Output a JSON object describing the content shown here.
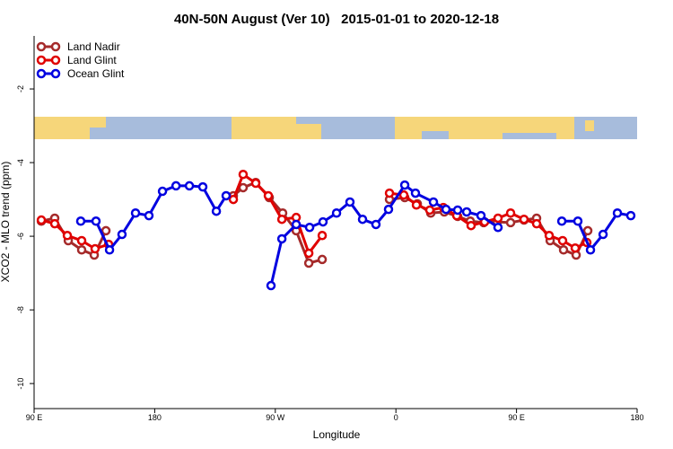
{
  "chart_data": {
    "type": "line",
    "title": "40N-50N August (Ver 10)   2015-01-01 to 2020-12-18",
    "xlabel": "Longitude",
    "ylabel": "XCO2 - MLO trend (ppm)",
    "xlim": [
      90,
      540
    ],
    "ylim": [
      -10.68,
      -0.56
    ],
    "xticks": [
      {
        "value": 90,
        "label": "90 E"
      },
      {
        "value": 180,
        "label": "180"
      },
      {
        "value": 270,
        "label": "90 W"
      },
      {
        "value": 360,
        "label": "0"
      },
      {
        "value": 450,
        "label": "90 E"
      },
      {
        "value": 540,
        "label": "180"
      }
    ],
    "yticks": [
      -10,
      -8,
      -6,
      -4,
      -2
    ],
    "legend": "top-left",
    "series": [
      {
        "name": "Land Nadir",
        "color": "#a52a2a",
        "x": [
          95.4,
          105.4,
          115.5,
          125.5,
          134.9,
          143.6,
          190,
          238.7,
          246.0,
          255.4,
          265.5,
          275.5,
          285.6,
          295.0,
          305.0,
          330,
          355.2,
          366.6,
          376.0,
          386.0,
          396.1,
          406.1,
          415.5,
          425.5,
          435.6,
          445.6,
          455.6,
          465.0,
          475.1,
          485.1,
          494.5,
          503.2
        ],
        "values": [
          -5.59,
          -5.51,
          -6.12,
          -6.37,
          -6.51,
          -5.85,
          null,
          -4.9,
          -4.68,
          -4.54,
          -4.95,
          -5.37,
          -5.85,
          -6.73,
          -6.63,
          null,
          -5.0,
          -4.95,
          -5.12,
          -5.37,
          -5.34,
          -5.46,
          -5.59,
          -5.63,
          -5.61,
          -5.63,
          -5.56,
          -5.51,
          -6.12,
          -6.37,
          -6.51,
          -5.85
        ]
      },
      {
        "name": "Land Glint",
        "color": "#e00000",
        "x": [
          95.4,
          105.4,
          114.8,
          125.5,
          135.5,
          145.6,
          190,
          238.7,
          246.0,
          255.4,
          264.8,
          274.9,
          285.6,
          295.0,
          305.0,
          330,
          355.2,
          365.9,
          375.3,
          385.3,
          395.4,
          405.4,
          416.1,
          426.2,
          436.2,
          445.6,
          455.6,
          465.0,
          474.4,
          484.4,
          493.8,
          502.5
        ],
        "values": [
          -5.56,
          -5.66,
          -5.98,
          -6.12,
          -6.34,
          -6.22,
          null,
          -5.0,
          -4.32,
          -4.56,
          -4.9,
          -5.54,
          -5.49,
          -6.46,
          -5.98,
          null,
          -4.83,
          -4.88,
          -5.15,
          -5.29,
          -5.22,
          -5.44,
          -5.71,
          -5.61,
          -5.51,
          -5.37,
          -5.54,
          -5.66,
          -5.98,
          -6.12,
          -6.32,
          -6.17
        ]
      },
      {
        "name": "Ocean Glint",
        "color": "#0000e0",
        "x": [
          124.8,
          136.2,
          146.3,
          155.6,
          165.7,
          175.7,
          185.8,
          195.9,
          205.9,
          215.9,
          226.0,
          233.3,
          250,
          266.8,
          274.9,
          285.6,
          295.6,
          305.6,
          315.7,
          325.7,
          335.1,
          345.1,
          354.5,
          366.6,
          374.6,
          388.0,
          397.4,
          406.1,
          412.8,
          423.5,
          436.2,
          460,
          483.8,
          495.8,
          505.2,
          514.6,
          525.3,
          535.3
        ],
        "values": [
          -5.59,
          -5.59,
          -6.37,
          -5.95,
          -5.37,
          -5.44,
          -4.78,
          -4.63,
          -4.63,
          -4.66,
          -5.32,
          -4.9,
          null,
          -7.34,
          -6.07,
          -5.68,
          -5.76,
          -5.61,
          -5.37,
          -5.07,
          -5.54,
          -5.68,
          -5.27,
          -4.61,
          -4.83,
          -5.07,
          -5.27,
          -5.29,
          -5.34,
          -5.44,
          -5.76,
          null,
          -5.59,
          -5.59,
          -6.37,
          -5.95,
          -5.37,
          -5.44
        ]
      }
    ]
  }
}
